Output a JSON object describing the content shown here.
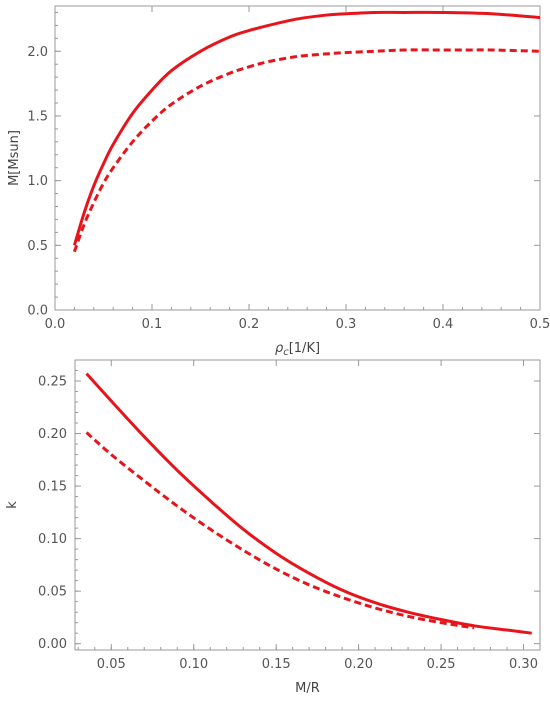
{
  "chart_data": [
    {
      "type": "line",
      "xlabel": "ρc[1/K]",
      "ylabel": "M[Msun]",
      "xlim": [
        0.0,
        0.5
      ],
      "ylim": [
        0.0,
        2.35
      ],
      "xticks": [
        0.0,
        0.1,
        0.2,
        0.3,
        0.4,
        0.5
      ],
      "xtick_labels": [
        "0.0",
        "0.1",
        "0.2",
        "0.3",
        "0.4",
        "0.5"
      ],
      "yticks": [
        0.0,
        0.5,
        1.0,
        1.5,
        2.0
      ],
      "ytick_labels": [
        "0.0",
        "0.5",
        "1.0",
        "1.5",
        "2.0"
      ],
      "grid": false,
      "series": [
        {
          "style": "solid",
          "color": "#e8141b",
          "x": [
            0.02,
            0.03,
            0.04,
            0.05,
            0.06,
            0.08,
            0.1,
            0.12,
            0.15,
            0.18,
            0.2,
            0.22,
            0.25,
            0.28,
            0.3,
            0.33,
            0.36,
            0.4,
            0.45,
            0.5
          ],
          "y": [
            0.5,
            0.75,
            0.96,
            1.13,
            1.28,
            1.52,
            1.7,
            1.85,
            2.0,
            2.11,
            2.16,
            2.2,
            2.25,
            2.28,
            2.29,
            2.3,
            2.3,
            2.3,
            2.29,
            2.26
          ]
        },
        {
          "style": "dashed",
          "color": "#e8141b",
          "x": [
            0.02,
            0.03,
            0.04,
            0.05,
            0.06,
            0.08,
            0.1,
            0.12,
            0.15,
            0.18,
            0.2,
            0.22,
            0.25,
            0.28,
            0.3,
            0.33,
            0.36,
            0.4,
            0.43,
            0.45,
            0.5
          ],
          "y": [
            0.45,
            0.66,
            0.83,
            0.98,
            1.1,
            1.3,
            1.46,
            1.59,
            1.73,
            1.83,
            1.88,
            1.92,
            1.96,
            1.98,
            1.99,
            2.0,
            2.01,
            2.01,
            2.01,
            2.01,
            2.0
          ]
        }
      ]
    },
    {
      "type": "line",
      "xlabel": "M/R",
      "ylabel": "k",
      "xlim": [
        0.028,
        0.31
      ],
      "ylim": [
        -0.006,
        0.27
      ],
      "xticks": [
        0.05,
        0.1,
        0.15,
        0.2,
        0.25,
        0.3
      ],
      "xtick_labels": [
        "0.05",
        "0.10",
        "0.15",
        "0.20",
        "0.25",
        "0.30"
      ],
      "yticks": [
        0.0,
        0.05,
        0.1,
        0.15,
        0.2,
        0.25
      ],
      "ytick_labels": [
        "0.00",
        "0.05",
        "0.10",
        "0.15",
        "0.20",
        "0.25"
      ],
      "grid": false,
      "series": [
        {
          "style": "solid",
          "color": "#e8141b",
          "x": [
            0.035,
            0.05,
            0.07,
            0.09,
            0.11,
            0.13,
            0.15,
            0.17,
            0.19,
            0.21,
            0.23,
            0.25,
            0.27,
            0.29,
            0.305
          ],
          "y": [
            0.257,
            0.231,
            0.197,
            0.165,
            0.136,
            0.109,
            0.086,
            0.067,
            0.051,
            0.039,
            0.03,
            0.023,
            0.017,
            0.013,
            0.01
          ]
        },
        {
          "style": "dashed",
          "color": "#e8141b",
          "x": [
            0.035,
            0.05,
            0.07,
            0.09,
            0.11,
            0.13,
            0.15,
            0.17,
            0.19,
            0.21,
            0.23,
            0.25,
            0.27
          ],
          "y": [
            0.201,
            0.18,
            0.155,
            0.131,
            0.109,
            0.089,
            0.071,
            0.056,
            0.044,
            0.034,
            0.026,
            0.02,
            0.015
          ]
        }
      ]
    }
  ]
}
